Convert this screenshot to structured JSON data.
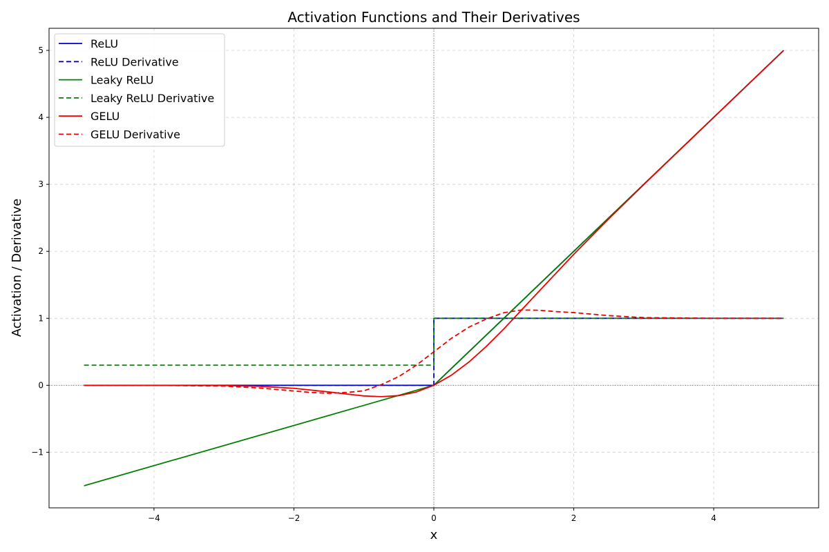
{
  "chart_data": {
    "type": "line",
    "title": "Activation Functions and Their Derivatives",
    "xlabel": "x",
    "ylabel": "Activation / Derivative",
    "xlim": [
      -5.5,
      5.5
    ],
    "ylim": [
      -1.83,
      5.33
    ],
    "x_ticks": [
      -4,
      -2,
      0,
      2,
      4
    ],
    "x_tick_labels": [
      "−4",
      "−2",
      "0",
      "2",
      "4"
    ],
    "y_ticks": [
      -1,
      0,
      1,
      2,
      3,
      4,
      5
    ],
    "y_tick_labels": [
      "−1",
      "0",
      "1",
      "2",
      "3",
      "4",
      "5"
    ],
    "grid": true,
    "legend_position": "top-left",
    "reference_lines": {
      "x": 0,
      "y": 0
    },
    "series": [
      {
        "name": "ReLU",
        "color": "#0000cc",
        "dash": "solid",
        "x": [
          -5,
          0,
          5
        ],
        "y": [
          0,
          0,
          5
        ]
      },
      {
        "name": "ReLU Derivative",
        "color": "#0000cc",
        "dash": "dashed",
        "x": [
          -5,
          0,
          0,
          5
        ],
        "y": [
          0,
          0,
          1,
          1
        ]
      },
      {
        "name": "Leaky ReLU",
        "color": "#008000",
        "dash": "solid",
        "x": [
          -5,
          0,
          5
        ],
        "y": [
          -1.5,
          0,
          5
        ]
      },
      {
        "name": "Leaky ReLU Derivative",
        "color": "#008000",
        "dash": "dashed",
        "x": [
          -5,
          0,
          0,
          5
        ],
        "y": [
          0.3,
          0.3,
          1,
          1
        ]
      },
      {
        "name": "GELU",
        "color": "#ee0000",
        "dash": "solid",
        "x": [
          -5,
          -4,
          -3,
          -2.5,
          -2,
          -1.5,
          -1.25,
          -1,
          -0.75,
          -0.5,
          -0.25,
          0,
          0.25,
          0.5,
          0.75,
          1,
          1.25,
          1.5,
          2,
          2.5,
          3,
          4,
          5
        ],
        "y": [
          0,
          0,
          -0.004,
          -0.015,
          -0.045,
          -0.1,
          -0.13,
          -0.159,
          -0.17,
          -0.154,
          -0.1,
          0,
          0.15,
          0.346,
          0.58,
          0.841,
          1.12,
          1.4,
          1.955,
          2.485,
          2.996,
          4,
          5
        ]
      },
      {
        "name": "GELU Derivative",
        "color": "#ee0000",
        "dash": "dashed",
        "x": [
          -5,
          -4,
          -3,
          -2.5,
          -2,
          -1.75,
          -1.5,
          -1.25,
          -1,
          -0.75,
          -0.5,
          -0.25,
          0,
          0.25,
          0.5,
          0.75,
          1,
          1.25,
          1.5,
          1.75,
          2,
          2.5,
          3,
          4,
          5
        ],
        "y": [
          0,
          0,
          -0.012,
          -0.04,
          -0.085,
          -0.108,
          -0.12,
          -0.107,
          -0.083,
          0.01,
          0.13,
          0.3,
          0.5,
          0.7,
          0.867,
          0.99,
          1.083,
          1.124,
          1.12,
          1.1,
          1.085,
          1.04,
          1.01,
          1,
          1
        ]
      }
    ]
  }
}
